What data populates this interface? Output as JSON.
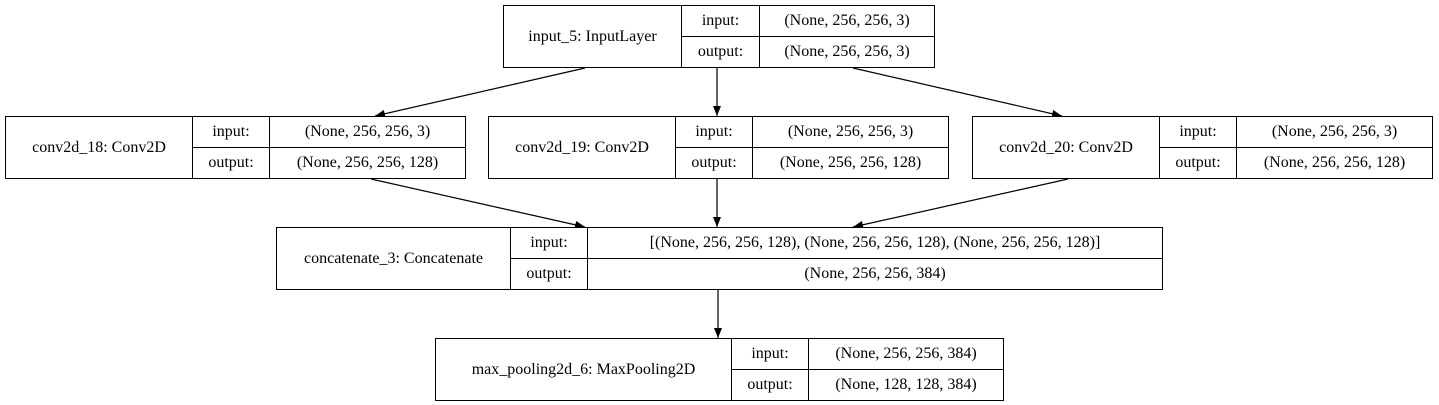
{
  "nodes": {
    "input_5": {
      "name": "input_5: InputLayer",
      "input_label": "input:",
      "input_value": "(None, 256, 256, 3)",
      "output_label": "output:",
      "output_value": "(None, 256, 256, 3)"
    },
    "conv2d_18": {
      "name": "conv2d_18: Conv2D",
      "input_label": "input:",
      "input_value": "(None, 256, 256, 3)",
      "output_label": "output:",
      "output_value": "(None, 256, 256, 128)"
    },
    "conv2d_19": {
      "name": "conv2d_19: Conv2D",
      "input_label": "input:",
      "input_value": "(None, 256, 256, 3)",
      "output_label": "output:",
      "output_value": "(None, 256, 256, 128)"
    },
    "conv2d_20": {
      "name": "conv2d_20: Conv2D",
      "input_label": "input:",
      "input_value": "(None, 256, 256, 3)",
      "output_label": "output:",
      "output_value": "(None, 256, 256, 128)"
    },
    "concatenate_3": {
      "name": "concatenate_3: Concatenate",
      "input_label": "input:",
      "input_value": "[(None, 256, 256, 128), (None, 256, 256, 128), (None, 256, 256, 128)]",
      "output_label": "output:",
      "output_value": "(None, 256, 256, 384)"
    },
    "max_pooling2d_6": {
      "name": "max_pooling2d_6: MaxPooling2D",
      "input_label": "input:",
      "input_value": "(None, 256, 256, 384)",
      "output_label": "output:",
      "output_value": "(None, 128, 128, 384)"
    }
  },
  "edges": [
    {
      "from": "input_5",
      "to": "conv2d_18"
    },
    {
      "from": "input_5",
      "to": "conv2d_19"
    },
    {
      "from": "input_5",
      "to": "conv2d_20"
    },
    {
      "from": "conv2d_18",
      "to": "concatenate_3"
    },
    {
      "from": "conv2d_19",
      "to": "concatenate_3"
    },
    {
      "from": "conv2d_20",
      "to": "concatenate_3"
    },
    {
      "from": "concatenate_3",
      "to": "max_pooling2d_6"
    }
  ],
  "colors": {
    "line": "#000000",
    "background": "#ffffff"
  }
}
